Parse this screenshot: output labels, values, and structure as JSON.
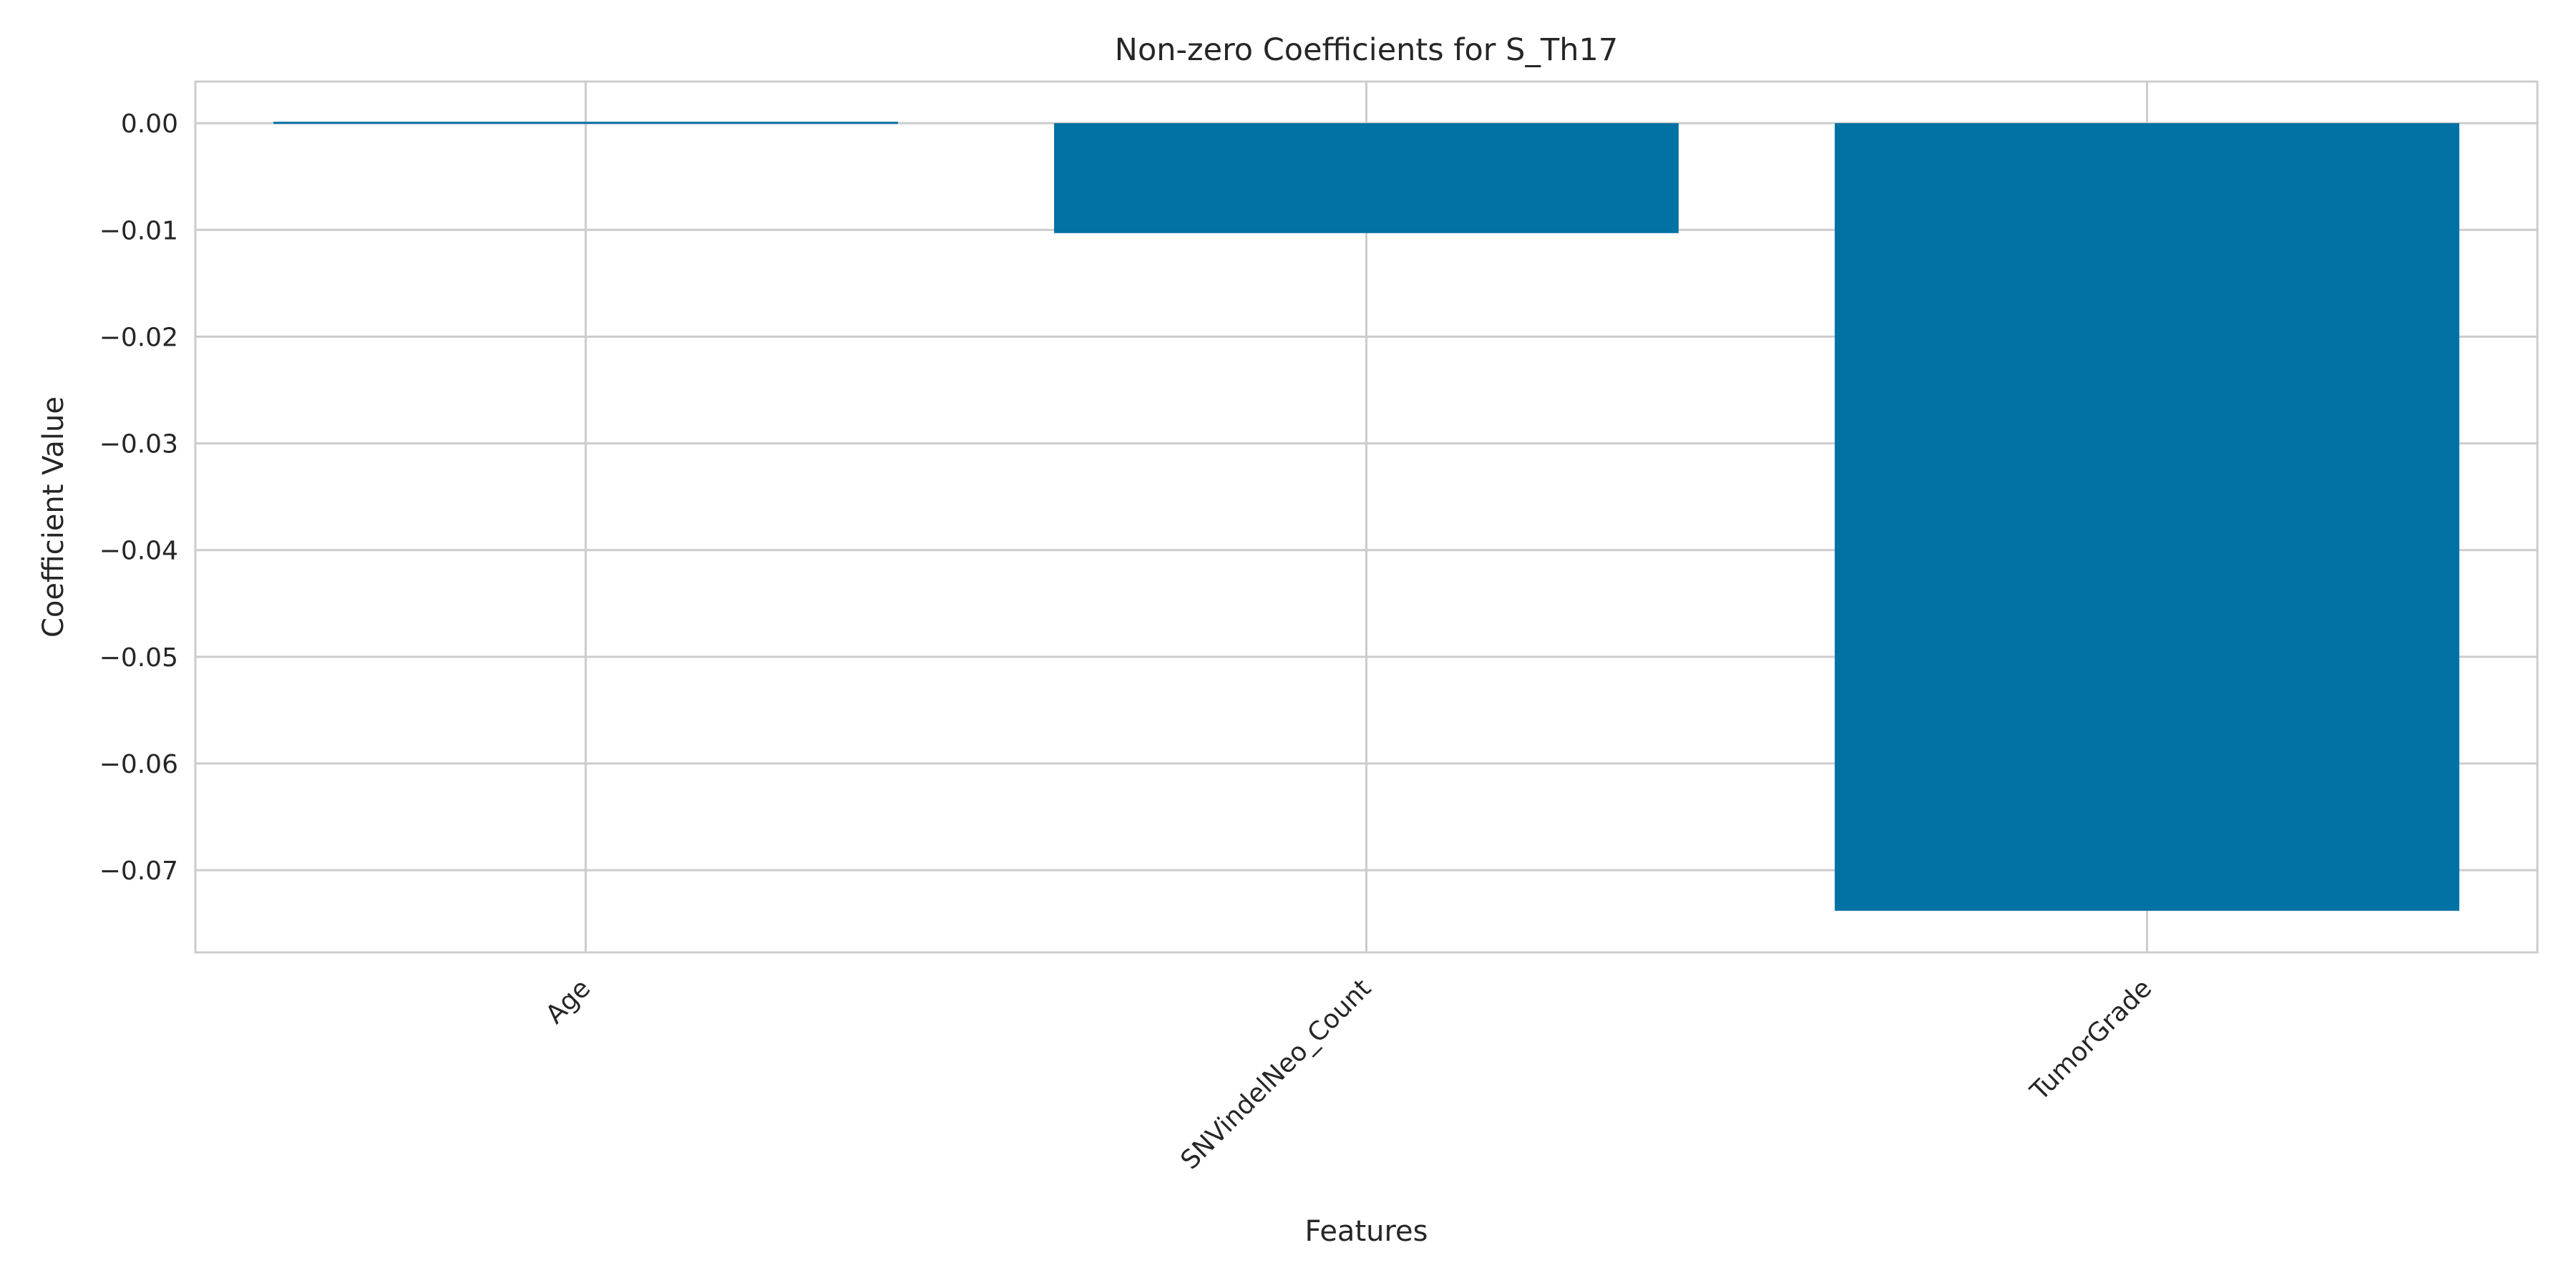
{
  "chart_data": {
    "type": "bar",
    "title": "Non-zero Coefficients for S_Th17",
    "xlabel": "Features",
    "ylabel": "Coefficient Value",
    "categories": [
      "Age",
      "SNVindelNeo_Count",
      "TumorGrade"
    ],
    "values": [
      0.0002,
      -0.0103,
      -0.0738
    ],
    "ylim": [
      -0.0777,
      0.0039
    ],
    "yticks": [
      0.0,
      -0.01,
      -0.02,
      -0.03,
      -0.04,
      -0.05,
      -0.06,
      -0.07
    ],
    "ytick_labels": [
      "0.00",
      "−0.01",
      "−0.02",
      "−0.03",
      "−0.04",
      "−0.05",
      "−0.06",
      "−0.07"
    ],
    "grid": true,
    "legend": "none",
    "bar_color": "#0271a4",
    "grid_color": "#cccccc",
    "axes_edge_color": "#cccccc",
    "text_color": "#262626"
  }
}
